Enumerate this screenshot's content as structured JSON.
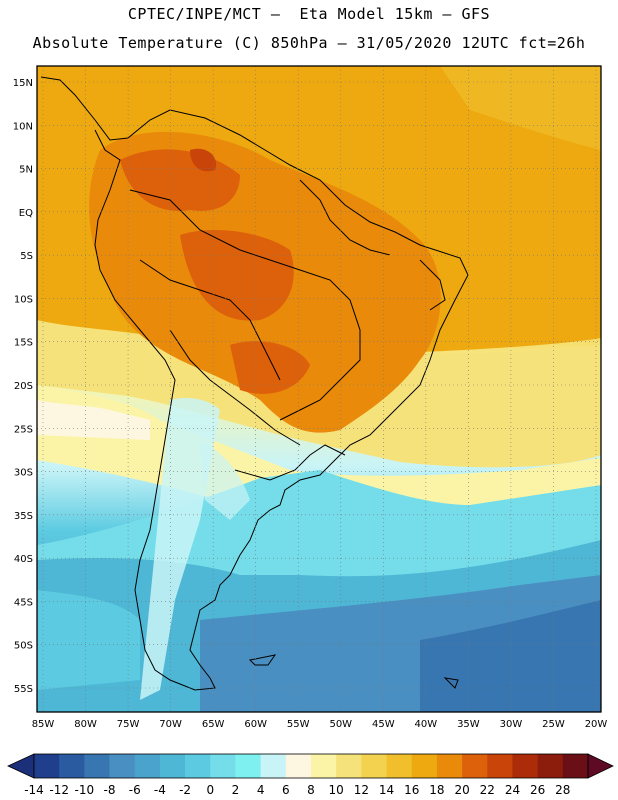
{
  "header": {
    "line1": "CPTEC/INPE/MCT –  Eta Model 15km – GFS",
    "line2": "Absolute Temperature (C) 850hPa – 31/05/2020 12UTC fct=26h"
  },
  "map": {
    "lat_labels": [
      "15N",
      "10N",
      "5N",
      "EQ",
      "5S",
      "10S",
      "15S",
      "20S",
      "25S",
      "30S",
      "35S",
      "40S",
      "45S",
      "50S",
      "55S"
    ],
    "lon_labels": [
      "85W",
      "80W",
      "75W",
      "70W",
      "65W",
      "60W",
      "55W",
      "50W",
      "45W",
      "40W",
      "35W",
      "30W",
      "25W",
      "20W"
    ]
  },
  "colorbar": {
    "labels": [
      "-14",
      "-12",
      "-10",
      "-8",
      "-6",
      "-4",
      "-2",
      "0",
      "2",
      "4",
      "6",
      "8",
      "10",
      "12",
      "14",
      "16",
      "18",
      "20",
      "22",
      "24",
      "26",
      "28"
    ],
    "colors": [
      "#1f3e8c",
      "#2a5a9f",
      "#3776b1",
      "#4a8fc1",
      "#4aa3cc",
      "#4eb7d6",
      "#5ccbe1",
      "#74dde9",
      "#7ff0f0",
      "#c9f4f7",
      "#fdf7e2",
      "#fbf4a6",
      "#f6e27a",
      "#f3d24f",
      "#f0bf2b",
      "#eda90f",
      "#e98a0b",
      "#dd600b",
      "#c84409",
      "#ac2b08",
      "#8c1c0c",
      "#6a0f15"
    ],
    "low_cap_color": "#1c2f7a",
    "high_cap_color": "#5e0a25"
  }
}
